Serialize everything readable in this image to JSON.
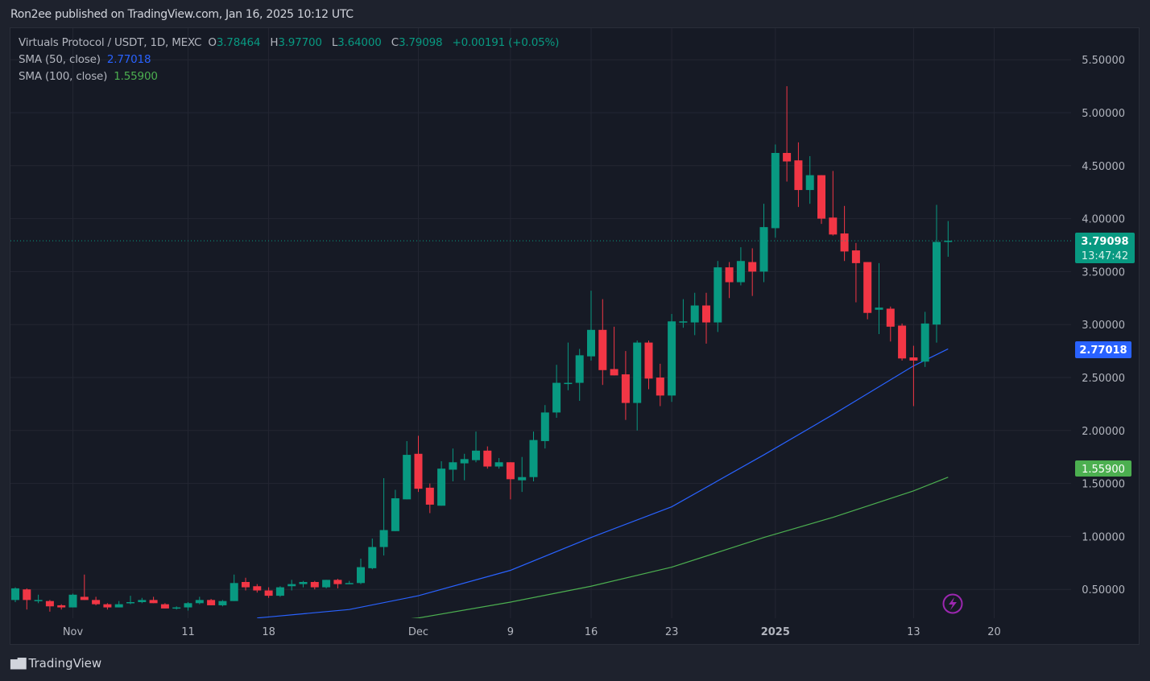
{
  "publisher_line": "Ron2ee published on TradingView.com, Jan 16, 2025 10:12 UTC",
  "legend": {
    "symbol": "Virtuals Protocol / USDT, 1D, MEXC",
    "o_label": "O",
    "o": "3.78464",
    "h_label": "H",
    "h": "3.97700",
    "l_label": "L",
    "l": "3.64000",
    "c_label": "C",
    "c": "3.79098",
    "change": "+0.00191 (+0.05%)",
    "sma50_label": "SMA (50, close)",
    "sma50_value": "2.77018",
    "sma100_label": "SMA (100, close)",
    "sma100_value": "1.55900"
  },
  "badges": {
    "last_price": "3.79098",
    "countdown": "13:47:42",
    "sma50": "2.77018",
    "sma100": "1.55900"
  },
  "footer": {
    "brand": "TradingView"
  },
  "colors": {
    "up": "#089981",
    "down": "#f23645",
    "sma50": "#2962ff",
    "sma100": "#4caf50",
    "last_badge": "#089981",
    "signal_icon": "#9c27b0"
  },
  "icons": {
    "event_marker": "lightning-icon",
    "brand": "tradingview-logo-icon"
  },
  "chart_data": {
    "type": "candlestick",
    "title": "Virtuals Protocol / USDT, 1D, MEXC",
    "y_ticks": [
      "0.50000",
      "1.00000",
      "1.50000",
      "2.00000",
      "2.50000",
      "3.00000",
      "3.50000",
      "4.00000",
      "4.50000",
      "5.00000",
      "5.50000"
    ],
    "x_ticks": [
      {
        "date": "2024-11-01",
        "label": "Nov"
      },
      {
        "date": "2024-11-11",
        "label": "11"
      },
      {
        "date": "2024-11-18",
        "label": "18"
      },
      {
        "date": "2024-12-01",
        "label": "Dec"
      },
      {
        "date": "2024-12-09",
        "label": "9"
      },
      {
        "date": "2024-12-16",
        "label": "16"
      },
      {
        "date": "2024-12-23",
        "label": "23"
      },
      {
        "date": "2025-01-01",
        "label": "2025"
      },
      {
        "date": "2025-01-13",
        "label": "13"
      },
      {
        "date": "2025-01-20",
        "label": "20"
      }
    ],
    "ylim": [
      0.2,
      5.75
    ],
    "grid": true,
    "candles": [
      [
        "2024-10-27",
        0.4,
        0.52,
        0.38,
        0.51
      ],
      [
        "2024-10-28",
        0.5,
        0.51,
        0.31,
        0.4
      ],
      [
        "2024-10-29",
        0.4,
        0.45,
        0.37,
        0.4
      ],
      [
        "2024-10-30",
        0.39,
        0.4,
        0.29,
        0.34
      ],
      [
        "2024-10-31",
        0.35,
        0.36,
        0.31,
        0.33
      ],
      [
        "2024-11-01",
        0.33,
        0.46,
        0.33,
        0.45
      ],
      [
        "2024-11-02",
        0.43,
        0.64,
        0.4,
        0.4
      ],
      [
        "2024-11-03",
        0.4,
        0.43,
        0.35,
        0.36
      ],
      [
        "2024-11-04",
        0.36,
        0.37,
        0.31,
        0.33
      ],
      [
        "2024-11-05",
        0.33,
        0.39,
        0.33,
        0.36
      ],
      [
        "2024-11-06",
        0.37,
        0.44,
        0.36,
        0.38
      ],
      [
        "2024-11-07",
        0.38,
        0.42,
        0.37,
        0.4
      ],
      [
        "2024-11-08",
        0.4,
        0.43,
        0.37,
        0.37
      ],
      [
        "2024-11-09",
        0.36,
        0.37,
        0.32,
        0.32
      ],
      [
        "2024-11-10",
        0.33,
        0.34,
        0.31,
        0.33
      ],
      [
        "2024-11-11",
        0.33,
        0.38,
        0.3,
        0.37
      ],
      [
        "2024-11-12",
        0.37,
        0.43,
        0.36,
        0.4
      ],
      [
        "2024-11-13",
        0.4,
        0.41,
        0.35,
        0.35
      ],
      [
        "2024-11-14",
        0.35,
        0.4,
        0.34,
        0.39
      ],
      [
        "2024-11-15",
        0.39,
        0.64,
        0.39,
        0.56
      ],
      [
        "2024-11-16",
        0.57,
        0.61,
        0.49,
        0.52
      ],
      [
        "2024-11-17",
        0.53,
        0.55,
        0.47,
        0.49
      ],
      [
        "2024-11-18",
        0.49,
        0.52,
        0.42,
        0.44
      ],
      [
        "2024-11-19",
        0.44,
        0.53,
        0.43,
        0.52
      ],
      [
        "2024-11-20",
        0.53,
        0.59,
        0.49,
        0.55
      ],
      [
        "2024-11-21",
        0.55,
        0.58,
        0.52,
        0.57
      ],
      [
        "2024-11-22",
        0.57,
        0.58,
        0.5,
        0.52
      ],
      [
        "2024-11-23",
        0.52,
        0.59,
        0.51,
        0.59
      ],
      [
        "2024-11-24",
        0.59,
        0.6,
        0.51,
        0.55
      ],
      [
        "2024-11-25",
        0.56,
        0.58,
        0.55,
        0.56
      ],
      [
        "2024-11-26",
        0.56,
        0.79,
        0.55,
        0.71
      ],
      [
        "2024-11-27",
        0.7,
        0.98,
        0.69,
        0.9
      ],
      [
        "2024-11-28",
        0.9,
        1.55,
        0.82,
        1.06
      ],
      [
        "2024-11-29",
        1.05,
        1.44,
        1.05,
        1.36
      ],
      [
        "2024-11-30",
        1.35,
        1.9,
        1.35,
        1.77
      ],
      [
        "2024-12-01",
        1.78,
        1.95,
        1.42,
        1.45
      ],
      [
        "2024-12-02",
        1.46,
        1.5,
        1.22,
        1.3
      ],
      [
        "2024-12-03",
        1.29,
        1.71,
        1.29,
        1.64
      ],
      [
        "2024-12-04",
        1.63,
        1.83,
        1.52,
        1.7
      ],
      [
        "2024-12-05",
        1.69,
        1.78,
        1.53,
        1.73
      ],
      [
        "2024-12-06",
        1.72,
        1.99,
        1.7,
        1.81
      ],
      [
        "2024-12-07",
        1.81,
        1.85,
        1.64,
        1.66
      ],
      [
        "2024-12-08",
        1.66,
        1.74,
        1.64,
        1.7
      ],
      [
        "2024-12-09",
        1.7,
        1.7,
        1.35,
        1.54
      ],
      [
        "2024-12-10",
        1.53,
        1.75,
        1.42,
        1.56
      ],
      [
        "2024-12-11",
        1.56,
        1.99,
        1.52,
        1.91
      ],
      [
        "2024-12-12",
        1.9,
        2.24,
        1.83,
        2.17
      ],
      [
        "2024-12-13",
        2.17,
        2.62,
        2.12,
        2.45
      ],
      [
        "2024-12-14",
        2.45,
        2.83,
        2.38,
        2.45
      ],
      [
        "2024-12-15",
        2.45,
        2.77,
        2.28,
        2.71
      ],
      [
        "2024-12-16",
        2.7,
        3.32,
        2.66,
        2.95
      ],
      [
        "2024-12-17",
        2.95,
        3.24,
        2.43,
        2.57
      ],
      [
        "2024-12-18",
        2.58,
        2.98,
        2.52,
        2.52
      ],
      [
        "2024-12-19",
        2.53,
        2.75,
        2.1,
        2.26
      ],
      [
        "2024-12-20",
        2.26,
        2.85,
        2.0,
        2.83
      ],
      [
        "2024-12-21",
        2.83,
        2.85,
        2.39,
        2.49
      ],
      [
        "2024-12-22",
        2.5,
        2.63,
        2.23,
        2.33
      ],
      [
        "2024-12-23",
        2.33,
        3.1,
        2.27,
        3.03
      ],
      [
        "2024-12-24",
        3.03,
        3.24,
        2.97,
        3.03
      ],
      [
        "2024-12-25",
        3.02,
        3.3,
        2.9,
        3.18
      ],
      [
        "2024-12-26",
        3.18,
        3.3,
        2.82,
        3.02
      ],
      [
        "2024-12-27",
        3.02,
        3.6,
        2.93,
        3.54
      ],
      [
        "2024-12-28",
        3.54,
        3.59,
        3.25,
        3.4
      ],
      [
        "2024-12-29",
        3.4,
        3.73,
        3.37,
        3.6
      ],
      [
        "2024-12-30",
        3.59,
        3.72,
        3.27,
        3.5
      ],
      [
        "2024-12-31",
        3.5,
        4.14,
        3.4,
        3.92
      ],
      [
        "2025-01-01",
        3.91,
        4.7,
        3.82,
        4.62
      ],
      [
        "2025-01-02",
        4.62,
        5.25,
        4.35,
        4.54
      ],
      [
        "2025-01-03",
        4.55,
        4.72,
        4.11,
        4.27
      ],
      [
        "2025-01-04",
        4.27,
        4.59,
        4.14,
        4.41
      ],
      [
        "2025-01-05",
        4.41,
        4.41,
        3.95,
        4.0
      ],
      [
        "2025-01-06",
        4.01,
        4.45,
        3.84,
        3.85
      ],
      [
        "2025-01-07",
        3.86,
        4.12,
        3.6,
        3.69
      ],
      [
        "2025-01-08",
        3.7,
        3.77,
        3.21,
        3.58
      ],
      [
        "2025-01-09",
        3.59,
        3.59,
        3.05,
        3.11
      ],
      [
        "2025-01-10",
        3.14,
        3.58,
        2.91,
        3.16
      ],
      [
        "2025-01-11",
        3.15,
        3.17,
        2.84,
        2.98
      ],
      [
        "2025-01-12",
        2.99,
        3.01,
        2.66,
        2.68
      ],
      [
        "2025-01-13",
        2.69,
        2.8,
        2.23,
        2.66
      ],
      [
        "2025-01-14",
        2.65,
        3.12,
        2.6,
        3.01
      ],
      [
        "2025-01-15",
        3.0,
        4.13,
        2.83,
        3.78
      ],
      [
        "2025-01-16",
        3.78464,
        3.977,
        3.64,
        3.79098
      ]
    ],
    "series": [
      {
        "name": "SMA (50, close)",
        "points": [
          [
            "2024-11-17",
            0.23
          ],
          [
            "2024-11-18",
            0.24
          ],
          [
            "2024-11-25",
            0.31
          ],
          [
            "2024-12-01",
            0.44
          ],
          [
            "2024-12-09",
            0.68
          ],
          [
            "2024-12-16",
            0.99
          ],
          [
            "2024-12-23",
            1.28
          ],
          [
            "2024-12-31",
            1.77
          ],
          [
            "2025-01-06",
            2.15
          ],
          [
            "2025-01-13",
            2.61
          ],
          [
            "2025-01-16",
            2.77018
          ]
        ]
      },
      {
        "name": "SMA (100, close)",
        "points": [
          [
            "2024-11-30",
            0.22
          ],
          [
            "2024-12-01",
            0.23
          ],
          [
            "2024-12-09",
            0.38
          ],
          [
            "2024-12-16",
            0.53
          ],
          [
            "2024-12-23",
            0.71
          ],
          [
            "2024-12-31",
            0.99
          ],
          [
            "2025-01-06",
            1.18
          ],
          [
            "2025-01-13",
            1.43
          ],
          [
            "2025-01-16",
            1.559
          ]
        ]
      }
    ]
  }
}
